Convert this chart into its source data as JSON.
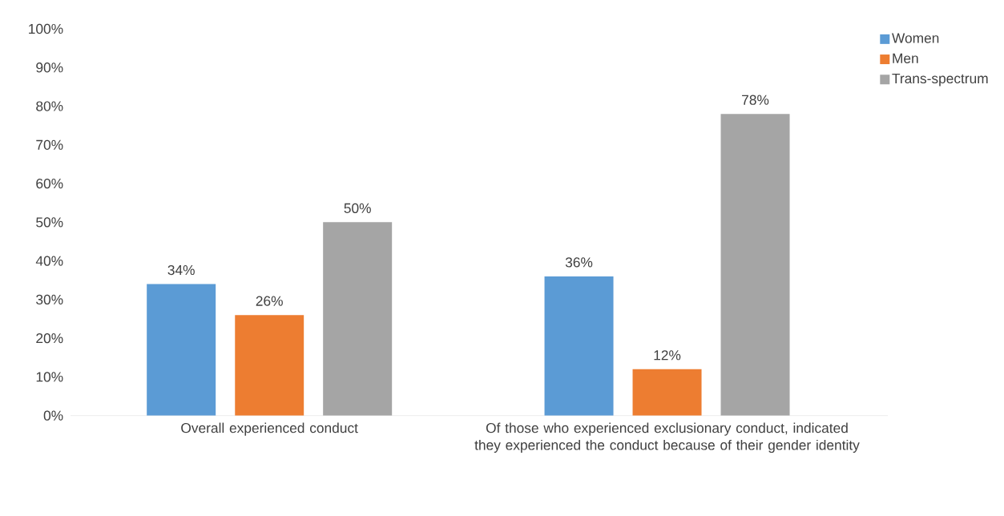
{
  "chart_data": {
    "type": "bar",
    "categories": [
      "Overall experienced conduct",
      "Of those who experienced exclusionary conduct, indicated they experienced the conduct because of their gender identity"
    ],
    "series": [
      {
        "name": "Women",
        "color": "#5b9bd5",
        "values": [
          34,
          36
        ],
        "value_labels": [
          "34%",
          "36%"
        ]
      },
      {
        "name": "Men",
        "color": "#ed7d31",
        "values": [
          26,
          12
        ],
        "value_labels": [
          "26%",
          "12%"
        ]
      },
      {
        "name": "Trans-spectrum",
        "color": "#a5a5a5",
        "values": [
          50,
          78
        ],
        "value_labels": [
          "50%",
          "78%"
        ]
      }
    ],
    "ylim": [
      0,
      100
    ],
    "yticks": [
      {
        "value": 0,
        "label": "0%"
      },
      {
        "value": 10,
        "label": "10%"
      },
      {
        "value": 20,
        "label": "20%"
      },
      {
        "value": 30,
        "label": "30%"
      },
      {
        "value": 40,
        "label": "40%"
      },
      {
        "value": 50,
        "label": "50%"
      },
      {
        "value": 60,
        "label": "60%"
      },
      {
        "value": 70,
        "label": "70%"
      },
      {
        "value": 80,
        "label": "80%"
      },
      {
        "value": 90,
        "label": "90%"
      },
      {
        "value": 100,
        "label": "100%"
      }
    ],
    "grid": false,
    "legend": "top right"
  }
}
